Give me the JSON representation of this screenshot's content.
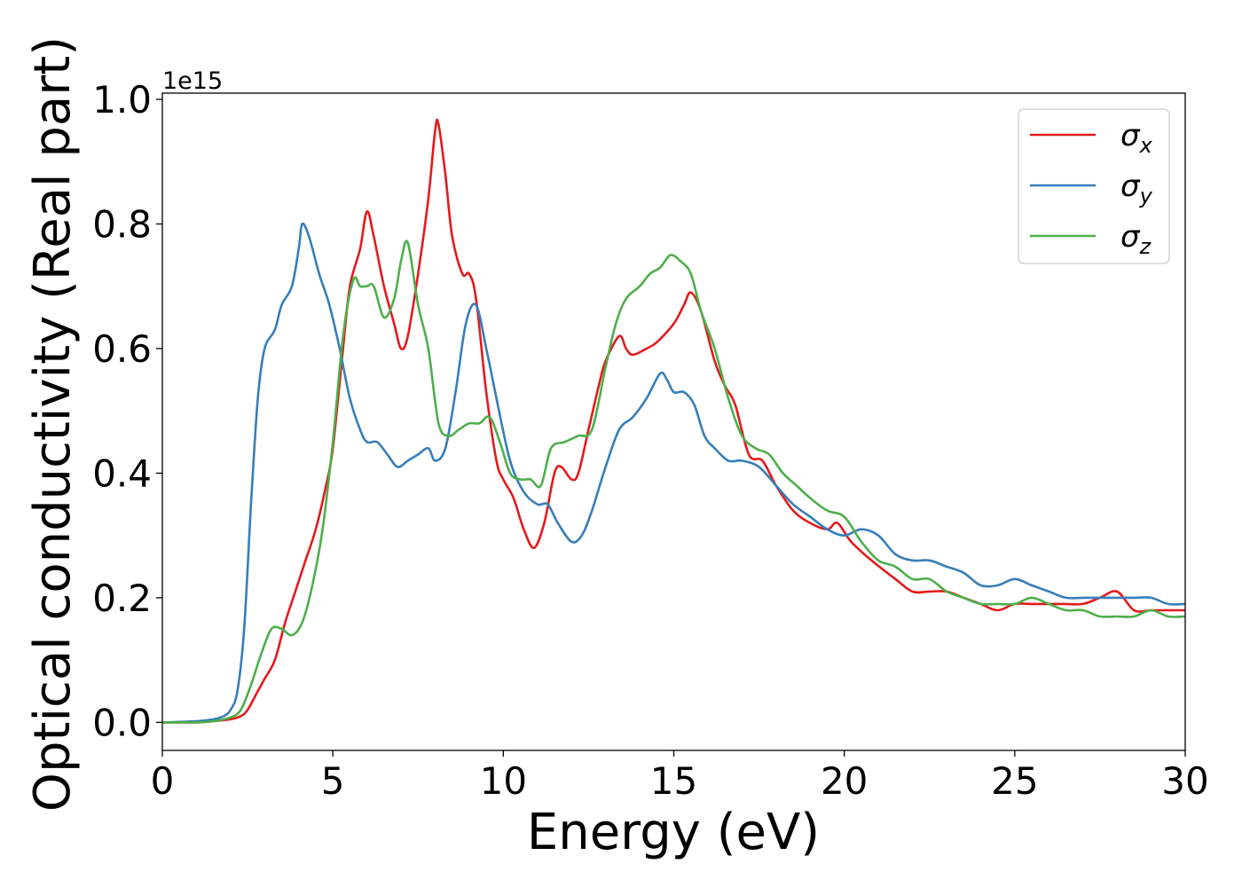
{
  "chart_data": {
    "type": "line",
    "xlabel": "Energy (eV)",
    "ylabel": "Optical conductivity (Real part)",
    "y_offset_label": "1e15",
    "xlim": [
      0,
      30
    ],
    "ylim": [
      -0.045,
      1.01
    ],
    "x_ticks": [
      0,
      5,
      10,
      15,
      20,
      25,
      30
    ],
    "x_tick_labels": [
      "0",
      "5",
      "10",
      "15",
      "20",
      "25",
      "30"
    ],
    "y_ticks": [
      0.0,
      0.2,
      0.4,
      0.6,
      0.8,
      1.0
    ],
    "y_tick_labels": [
      "0.0",
      "0.2",
      "0.4",
      "0.6",
      "0.8",
      "1.0"
    ],
    "grid": false,
    "legend_position": "top-right",
    "series": [
      {
        "name": "σ",
        "subscript": "x",
        "color": "#e41a1c",
        "x": [
          0,
          1,
          1.5,
          2,
          2.3,
          2.5,
          2.8,
          3.0,
          3.3,
          3.6,
          3.9,
          4.2,
          4.5,
          4.8,
          5.0,
          5.3,
          5.5,
          5.8,
          6.0,
          6.2,
          6.5,
          6.8,
          7.0,
          7.2,
          7.5,
          7.8,
          8.0,
          8.1,
          8.3,
          8.5,
          8.8,
          9.0,
          9.2,
          9.5,
          9.8,
          10.0,
          10.3,
          10.6,
          10.9,
          11.2,
          11.5,
          11.7,
          12.0,
          12.2,
          12.5,
          12.8,
          13.0,
          13.4,
          13.6,
          13.8,
          14.2,
          14.5,
          15.0,
          15.3,
          15.5,
          15.8,
          16.2,
          16.5,
          16.8,
          17.2,
          17.6,
          18.0,
          18.5,
          19.0,
          19.5,
          19.8,
          20.2,
          20.8,
          21.5,
          22.0,
          22.5,
          23.0,
          23.5,
          24.0,
          24.5,
          25.0,
          25.5,
          26.0,
          26.5,
          27.0,
          27.5,
          28.0,
          28.5,
          29.0,
          29.5,
          30.0
        ],
        "values": [
          0.0,
          0.0,
          0.002,
          0.005,
          0.01,
          0.02,
          0.05,
          0.07,
          0.1,
          0.16,
          0.21,
          0.26,
          0.31,
          0.38,
          0.44,
          0.6,
          0.7,
          0.76,
          0.82,
          0.78,
          0.7,
          0.64,
          0.6,
          0.62,
          0.72,
          0.84,
          0.95,
          0.96,
          0.88,
          0.78,
          0.72,
          0.72,
          0.68,
          0.53,
          0.42,
          0.39,
          0.36,
          0.31,
          0.28,
          0.32,
          0.4,
          0.41,
          0.39,
          0.4,
          0.47,
          0.54,
          0.58,
          0.62,
          0.6,
          0.59,
          0.6,
          0.61,
          0.64,
          0.67,
          0.69,
          0.66,
          0.58,
          0.54,
          0.51,
          0.43,
          0.42,
          0.38,
          0.34,
          0.32,
          0.31,
          0.32,
          0.29,
          0.26,
          0.23,
          0.21,
          0.21,
          0.21,
          0.2,
          0.19,
          0.18,
          0.19,
          0.19,
          0.19,
          0.19,
          0.19,
          0.2,
          0.21,
          0.18,
          0.18,
          0.18,
          0.18
        ]
      },
      {
        "name": "σ",
        "subscript": "y",
        "color": "#377eb8",
        "x": [
          0,
          1,
          1.5,
          1.8,
          2.0,
          2.2,
          2.4,
          2.6,
          2.8,
          3.0,
          3.3,
          3.5,
          3.8,
          4.0,
          4.1,
          4.3,
          4.6,
          4.9,
          5.2,
          5.5,
          5.8,
          6.0,
          6.3,
          6.6,
          6.9,
          7.2,
          7.5,
          7.8,
          8.0,
          8.3,
          8.6,
          8.9,
          9.2,
          9.5,
          9.8,
          10.2,
          10.6,
          11.0,
          11.3,
          11.6,
          12.0,
          12.3,
          12.6,
          13.0,
          13.4,
          13.8,
          14.2,
          14.6,
          14.8,
          15.0,
          15.3,
          15.6,
          15.9,
          16.2,
          16.6,
          17.0,
          17.5,
          18.0,
          18.5,
          19.0,
          19.5,
          20.0,
          20.5,
          21.0,
          21.5,
          22.0,
          22.5,
          23.0,
          23.5,
          24.0,
          24.5,
          25.0,
          25.5,
          26.0,
          26.5,
          27.0,
          27.5,
          28.0,
          28.5,
          29.0,
          29.5,
          30.0
        ],
        "values": [
          0.0,
          0.002,
          0.005,
          0.01,
          0.02,
          0.05,
          0.15,
          0.35,
          0.52,
          0.6,
          0.63,
          0.67,
          0.7,
          0.76,
          0.8,
          0.78,
          0.72,
          0.67,
          0.6,
          0.52,
          0.47,
          0.45,
          0.45,
          0.43,
          0.41,
          0.42,
          0.43,
          0.44,
          0.42,
          0.44,
          0.53,
          0.64,
          0.67,
          0.6,
          0.52,
          0.42,
          0.37,
          0.35,
          0.35,
          0.32,
          0.29,
          0.3,
          0.34,
          0.41,
          0.47,
          0.49,
          0.52,
          0.56,
          0.55,
          0.53,
          0.53,
          0.51,
          0.46,
          0.44,
          0.42,
          0.42,
          0.41,
          0.38,
          0.35,
          0.33,
          0.31,
          0.3,
          0.31,
          0.3,
          0.27,
          0.26,
          0.26,
          0.25,
          0.24,
          0.22,
          0.22,
          0.23,
          0.22,
          0.21,
          0.2,
          0.2,
          0.2,
          0.2,
          0.2,
          0.2,
          0.19,
          0.19
        ]
      },
      {
        "name": "σ",
        "subscript": "z",
        "color": "#4daf4a",
        "x": [
          0,
          1,
          1.5,
          2,
          2.3,
          2.6,
          2.9,
          3.2,
          3.5,
          3.8,
          4.1,
          4.4,
          4.7,
          5.0,
          5.3,
          5.6,
          5.8,
          6.0,
          6.2,
          6.5,
          6.8,
          7.0,
          7.2,
          7.5,
          7.8,
          8.1,
          8.4,
          8.7,
          9.0,
          9.3,
          9.6,
          9.9,
          10.2,
          10.5,
          10.8,
          11.1,
          11.4,
          11.8,
          12.2,
          12.6,
          13.0,
          13.3,
          13.6,
          14.0,
          14.3,
          14.6,
          14.9,
          15.2,
          15.5,
          15.8,
          16.2,
          16.6,
          17.0,
          17.4,
          17.8,
          18.2,
          18.6,
          19.0,
          19.5,
          20.0,
          20.5,
          21.0,
          21.5,
          22.0,
          22.5,
          23.0,
          23.5,
          24.0,
          24.5,
          25.0,
          25.5,
          26.0,
          26.5,
          27.0,
          27.5,
          28.0,
          28.5,
          29.0,
          29.5,
          30.0
        ],
        "values": [
          0.0,
          0.0,
          0.002,
          0.008,
          0.02,
          0.06,
          0.11,
          0.15,
          0.15,
          0.14,
          0.16,
          0.22,
          0.31,
          0.45,
          0.62,
          0.71,
          0.7,
          0.7,
          0.7,
          0.65,
          0.68,
          0.74,
          0.77,
          0.67,
          0.6,
          0.48,
          0.46,
          0.47,
          0.48,
          0.48,
          0.49,
          0.45,
          0.4,
          0.39,
          0.39,
          0.38,
          0.44,
          0.45,
          0.46,
          0.47,
          0.57,
          0.64,
          0.68,
          0.7,
          0.72,
          0.73,
          0.75,
          0.74,
          0.72,
          0.66,
          0.6,
          0.52,
          0.46,
          0.44,
          0.43,
          0.4,
          0.38,
          0.36,
          0.34,
          0.33,
          0.29,
          0.26,
          0.25,
          0.23,
          0.23,
          0.21,
          0.2,
          0.19,
          0.19,
          0.19,
          0.2,
          0.19,
          0.18,
          0.18,
          0.17,
          0.17,
          0.17,
          0.18,
          0.17,
          0.17
        ]
      }
    ]
  }
}
